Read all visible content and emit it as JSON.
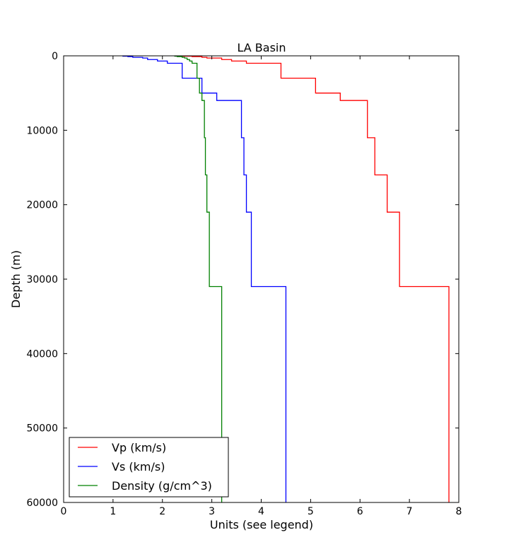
{
  "chart_data": {
    "type": "line",
    "title": "LA Basin",
    "xlabel": "Units (see legend)",
    "ylabel": "Depth (m)",
    "xlim": [
      0,
      8
    ],
    "ylim": [
      0,
      60000
    ],
    "y_inverted": true,
    "xticks": [
      "0",
      "1",
      "2",
      "3",
      "4",
      "5",
      "6",
      "7",
      "8"
    ],
    "yticks": [
      "0",
      "10000",
      "20000",
      "30000",
      "40000",
      "50000",
      "60000"
    ],
    "grid": false,
    "legend_position": "lower-left",
    "series": [
      {
        "name": "Vp (km/s)",
        "color": "#ff0000",
        "x": [
          2.3,
          2.6,
          2.8,
          2.9,
          3.2,
          3.4,
          3.7,
          4.4,
          5.1,
          5.6,
          6.15,
          6.3,
          6.55,
          6.8,
          7.8
        ],
        "layer_tops": [
          0,
          50,
          100,
          200,
          300,
          500,
          700,
          1000,
          3000,
          5000,
          6000,
          11000,
          16000,
          21000,
          31000
        ],
        "layer_bottoms": [
          50,
          100,
          200,
          300,
          500,
          700,
          1000,
          3000,
          5000,
          6000,
          11000,
          16000,
          21000,
          31000,
          60000
        ]
      },
      {
        "name": "Vs (km/s)",
        "color": "#0000ff",
        "x": [
          1.2,
          1.3,
          1.4,
          1.6,
          1.7,
          1.9,
          2.1,
          2.4,
          2.8,
          3.1,
          3.6,
          3.65,
          3.7,
          3.8,
          4.5
        ],
        "layer_tops": [
          0,
          50,
          100,
          200,
          300,
          500,
          700,
          1000,
          3000,
          5000,
          6000,
          11000,
          16000,
          21000,
          31000
        ],
        "layer_bottoms": [
          50,
          100,
          200,
          300,
          500,
          700,
          1000,
          3000,
          5000,
          6000,
          11000,
          16000,
          21000,
          31000,
          60000
        ]
      },
      {
        "name": "Density (g/cm^3)",
        "color": "#008000",
        "x": [
          2.25,
          2.3,
          2.4,
          2.45,
          2.5,
          2.55,
          2.6,
          2.7,
          2.75,
          2.8,
          2.85,
          2.87,
          2.9,
          2.95,
          3.2
        ],
        "layer_tops": [
          0,
          50,
          100,
          200,
          300,
          500,
          700,
          1000,
          3000,
          5000,
          6000,
          11000,
          16000,
          21000,
          31000
        ],
        "layer_bottoms": [
          50,
          100,
          200,
          300,
          500,
          700,
          1000,
          3000,
          5000,
          6000,
          11000,
          16000,
          21000,
          31000,
          60000
        ]
      }
    ]
  }
}
